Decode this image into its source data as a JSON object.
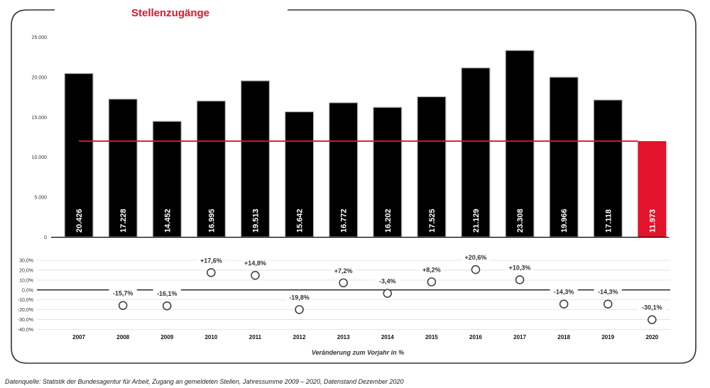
{
  "chart_data": [
    {
      "type": "bar",
      "title": "Stellenzugänge",
      "categories": [
        "2007",
        "2008",
        "2009",
        "2010",
        "2011",
        "2012",
        "2013",
        "2014",
        "2015",
        "2016",
        "2017",
        "2018",
        "2019",
        "2020"
      ],
      "values": [
        20426,
        17228,
        14452,
        16995,
        19513,
        15642,
        16772,
        16202,
        17525,
        21129,
        23308,
        19966,
        17118,
        11973
      ],
      "value_labels": [
        "20.426",
        "17.228",
        "14.452",
        "16.995",
        "19.513",
        "15.642",
        "16.772",
        "16.202",
        "17.525",
        "21.129",
        "23.308",
        "19.966",
        "17.118",
        "11.973"
      ],
      "ylim": [
        0,
        25000
      ],
      "yticks": [
        0,
        5000,
        10000,
        15000,
        20000,
        25000
      ],
      "ytick_labels": [
        "0",
        "5.000",
        "10.000",
        "15.000",
        "20.000",
        "25.000"
      ],
      "reference_line": 11973,
      "bar_color": "#000000",
      "highlight_color": "#e3132b",
      "highlight_category": "2020",
      "grid": false
    },
    {
      "type": "scatter",
      "categories": [
        "2008",
        "2009",
        "2010",
        "2011",
        "2012",
        "2013",
        "2014",
        "2015",
        "2016",
        "2017",
        "2018",
        "2019",
        "2020"
      ],
      "values": [
        -15.7,
        -16.1,
        17.6,
        14.8,
        -19.8,
        7.2,
        -3.4,
        8.2,
        20.6,
        10.3,
        -14.3,
        -14.3,
        -30.1
      ],
      "value_labels": [
        "-15,7%",
        "-16,1%",
        "+17,6%",
        "+14,8%",
        "-19,8%",
        "+7,2%",
        "-3,4%",
        "+8,2%",
        "+20,6%",
        "+10,3%",
        "-14,3%",
        "-14,3%",
        "-30,1%"
      ],
      "ylim": [
        -40,
        30
      ],
      "yticks": [
        30,
        20,
        10,
        0,
        -10,
        -20,
        -30,
        -40
      ],
      "ytick_labels": [
        "30,0%",
        "20,0%",
        "10,0%",
        "0,0%",
        "-10,0%",
        "-20,0%",
        "-30,0%",
        "-40,0%"
      ],
      "xlabel": "Veränderung zum Vorjahr in %",
      "grid": true
    }
  ],
  "source_note": "Datenquelle: Statistik der Bundesagentur für Arbeit, Zugang an gemeldeten Stellen, Jahressumme 2009 – 2020, Datenstand Dezember 2020",
  "colors": {
    "accent": "#e3132b",
    "frame": "#333333"
  }
}
